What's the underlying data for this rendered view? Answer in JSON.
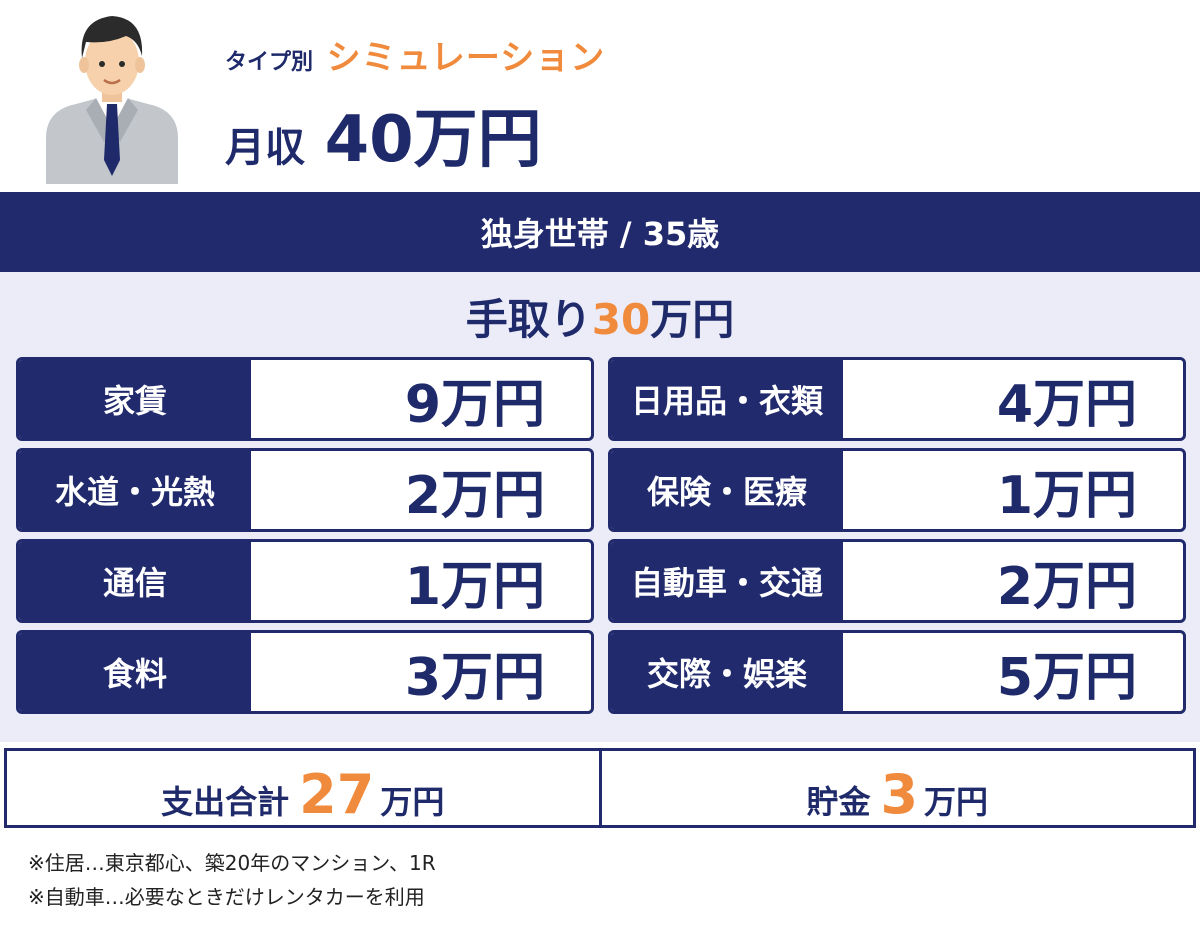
{
  "header": {
    "type_label": "タイプ別",
    "simulation_label": "シミュレーション",
    "income_label": "月収",
    "income_value": "40万円"
  },
  "banner": {
    "text": "独身世帯 / 35歳"
  },
  "take_home": {
    "prefix": "手取り",
    "number": "30",
    "suffix": "万円"
  },
  "expenses": {
    "left": [
      {
        "label": "家賃",
        "value": "9万円"
      },
      {
        "label": "水道・光熱",
        "value": "2万円"
      },
      {
        "label": "通信",
        "value": "1万円"
      },
      {
        "label": "食料",
        "value": "3万円"
      }
    ],
    "right": [
      {
        "label": "日用品・衣類",
        "value": "4万円"
      },
      {
        "label": "保険・医療",
        "value": "1万円"
      },
      {
        "label": "自動車・交通",
        "value": "2万円"
      },
      {
        "label": "交際・娯楽",
        "value": "5万円"
      }
    ]
  },
  "summary": {
    "total": {
      "label": "支出合計",
      "number": "27",
      "unit": "万円"
    },
    "savings": {
      "label": "貯金",
      "number": "3",
      "unit": "万円"
    }
  },
  "notes": [
    "※住居…東京都心、築20年のマンション、1R",
    "※自動車…必要なときだけレンタカーを利用"
  ],
  "colors": {
    "navy": "#212a6c",
    "accent": "#f08a3c",
    "panel": "#ebecf8"
  },
  "icons": {
    "avatar": "businessman-avatar-icon"
  }
}
